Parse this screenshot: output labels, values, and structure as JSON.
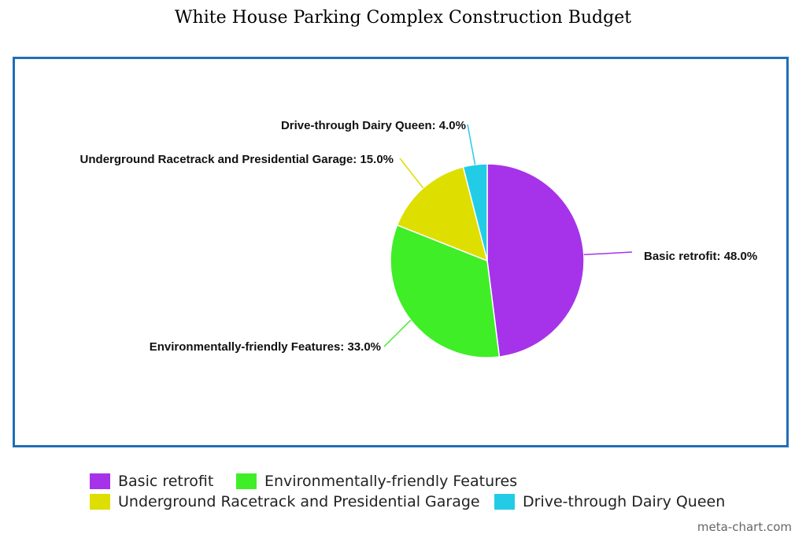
{
  "chart_data": {
    "type": "pie",
    "title": "White House Parking Complex Construction Budget",
    "slices": [
      {
        "name": "Basic retrofit",
        "value": 48.0,
        "label": "Basic retrofit: 48.0%",
        "color": "#a633ea"
      },
      {
        "name": "Environmentally-friendly Features",
        "value": 33.0,
        "label": "Environmentally-friendly Features: 33.0%",
        "color": "#3fee27"
      },
      {
        "name": "Underground Racetrack and Presidential Garage",
        "value": 15.0,
        "label": "Underground Racetrack and Presidential Garage: 15.0%",
        "color": "#dede00"
      },
      {
        "name": "Drive-through Dairy Queen",
        "value": 4.0,
        "label": "Drive-through Dairy Queen: 4.0%",
        "color": "#22cce6"
      }
    ],
    "legend_position": "bottom"
  },
  "frame_color": "#1f6fb8",
  "watermark": "meta-chart.com"
}
